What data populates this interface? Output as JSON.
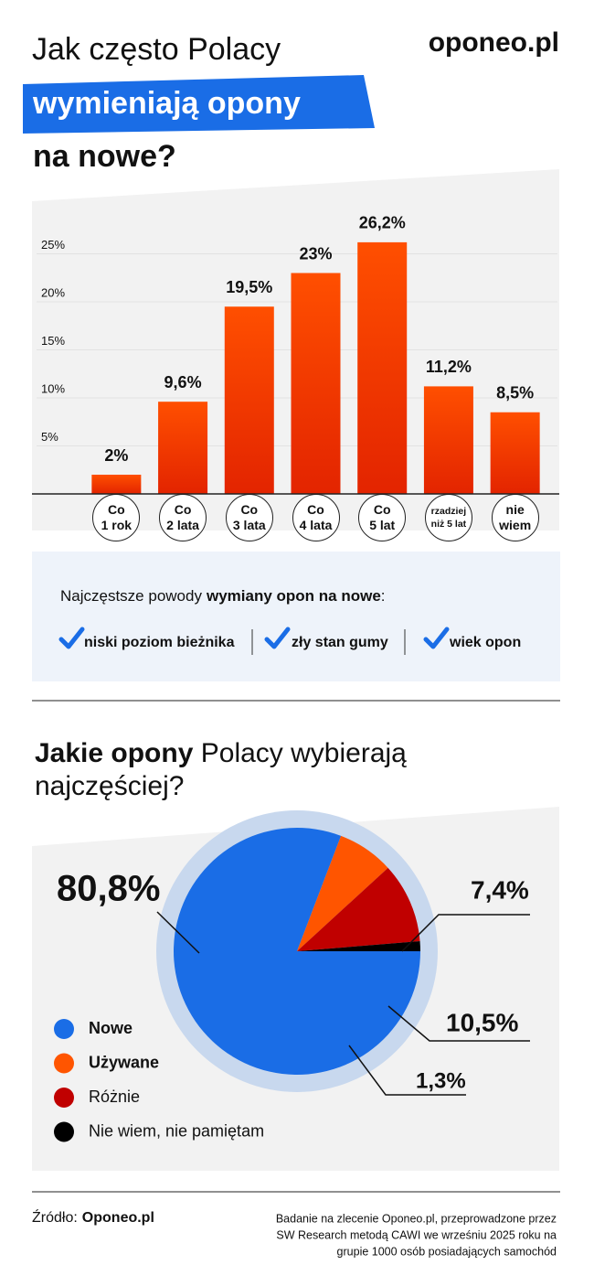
{
  "header": {
    "logo": "oponeo.pl",
    "title_line1": "Jak często Polacy",
    "title_highlight": "wymieniają opony",
    "title_line3": "na nowe?"
  },
  "chart_data": [
    {
      "type": "bar",
      "categories": [
        "Co\n1 rok",
        "Co\n2 lata",
        "Co\n3 lata",
        "Co\n4 lata",
        "Co\n5 lat",
        "rzadziej\nniż 5 lat",
        "nie\nwiem"
      ],
      "values": [
        2,
        9.6,
        19.5,
        23,
        26.2,
        11.2,
        8.5
      ],
      "value_labels": [
        "2%",
        "9,6%",
        "19,5%",
        "23%",
        "26,2%",
        "11,2%",
        "8,5%"
      ],
      "color": "#ff4f00",
      "ylim": [
        0,
        30
      ],
      "yticks": [
        {
          "value": 5,
          "label": "5%"
        },
        {
          "value": 10,
          "label": "10%"
        },
        {
          "value": 15,
          "label": "15%"
        },
        {
          "value": 20,
          "label": "20%"
        },
        {
          "value": 25,
          "label": "25%"
        }
      ],
      "grid": true
    },
    {
      "type": "pie",
      "title_bold": "Jakie opony",
      "title": "Polacy wybierają najczęściej?",
      "categories": [
        "Nowe",
        "Używane",
        "Różnie",
        "Nie wiem, nie pamiętam"
      ],
      "values": [
        80.8,
        7.4,
        10.5,
        1.3
      ],
      "value_labels": [
        "80,8%",
        "7,4%",
        "10,5%",
        "1,3%"
      ],
      "colors": [
        "#1a6de6",
        "#ff5500",
        "#c00000",
        "#000000"
      ]
    }
  ],
  "reasons": {
    "title": "Najczęstsze powody",
    "title_bold": "wymiany opon na nowe",
    "title_end": ":",
    "items": [
      "niski poziom bieżnika",
      "zły stan gumy",
      "wiek opon"
    ]
  },
  "source": {
    "label": "Źródło:",
    "name": "Oponeo.pl",
    "note": [
      "Badanie na zlecenie Oponeo.pl, przeprowadzone przez",
      "SW Research metodą CAWI we wrześniu 2025 roku na",
      "grupie 1000 osób posiadających samochód"
    ]
  }
}
